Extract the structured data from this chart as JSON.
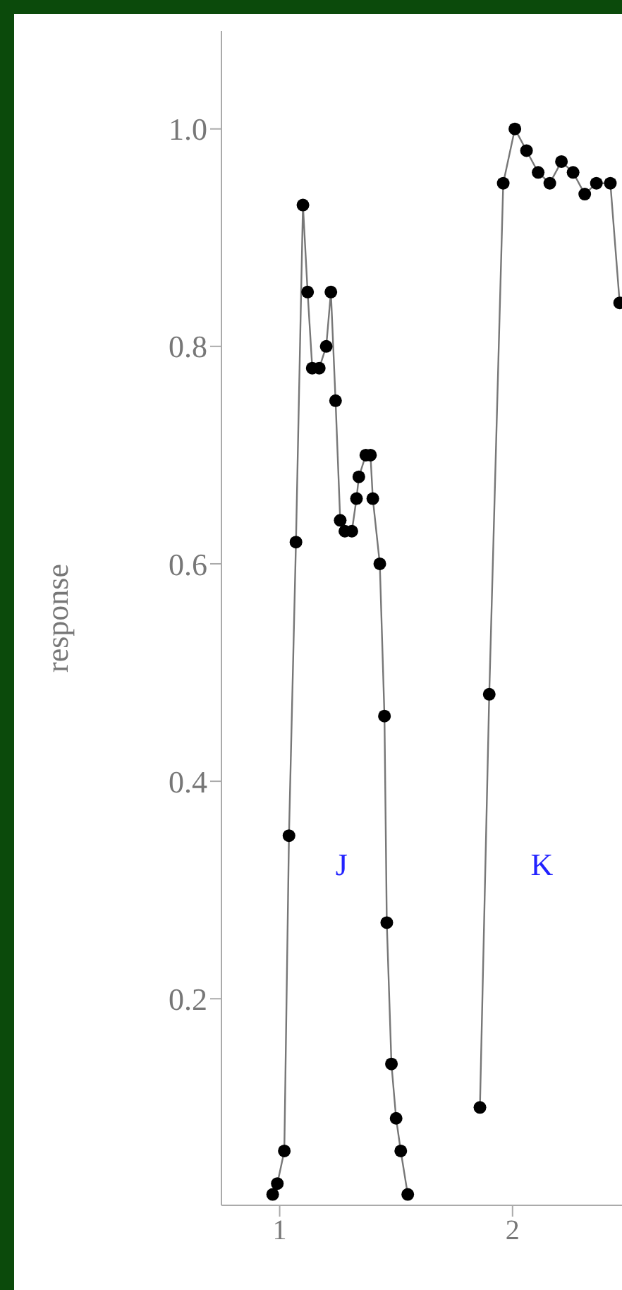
{
  "chart_data": {
    "type": "line",
    "ylabel": "response",
    "xlim": [
      0.75,
      2.47
    ],
    "xticks": [
      1,
      2
    ],
    "ylim": [
      0.01,
      1.09
    ],
    "yticks": [
      0.2,
      0.4,
      0.6,
      0.8,
      {
        "value": 1,
        "label": "1.0"
      }
    ],
    "grid": false,
    "marker": "circle",
    "line_style": "solid",
    "series": [
      {
        "color": "#000000",
        "x": [
          0.97,
          0.99,
          1.02,
          1.04,
          1.07,
          1.1,
          1.12,
          1.14,
          1.17,
          1.2,
          1.22,
          1.24,
          1.26,
          1.28,
          1.31,
          1.33,
          1.34,
          1.37,
          1.39,
          1.4,
          1.43,
          1.45,
          1.46,
          1.48,
          1.5,
          1.52,
          1.55
        ],
        "values": [
          0.02,
          0.03,
          0.06,
          0.35,
          0.62,
          0.93,
          0.85,
          0.78,
          0.78,
          0.8,
          0.85,
          0.75,
          0.64,
          0.63,
          0.63,
          0.66,
          0.68,
          0.7,
          0.7,
          0.66,
          0.6,
          0.46,
          0.27,
          0.14,
          0.09,
          0.06,
          0.02
        ]
      },
      {
        "color": "#000000",
        "x": [
          1.86,
          1.9,
          1.96,
          2.01,
          2.06,
          2.11,
          2.16,
          2.21,
          2.26,
          2.31,
          2.36,
          2.42,
          2.46
        ],
        "values": [
          0.1,
          0.48,
          0.95,
          1.0,
          0.98,
          0.96,
          0.95,
          0.97,
          0.96,
          0.94,
          0.95,
          0.95,
          0.84
        ]
      }
    ],
    "annotations": [
      "J",
      "K"
    ]
  }
}
